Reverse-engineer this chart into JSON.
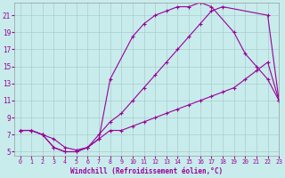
{
  "xlabel": "Windchill (Refroidissement éolien,°C)",
  "bg_color": "#c8ecec",
  "line_color": "#990099",
  "grid_color": "#aacccc",
  "xlim": [
    -0.5,
    23
  ],
  "ylim": [
    4.5,
    22.5
  ],
  "yticks": [
    5,
    7,
    9,
    11,
    13,
    15,
    17,
    19,
    21
  ],
  "xticks": [
    0,
    1,
    2,
    3,
    4,
    5,
    6,
    7,
    8,
    9,
    10,
    11,
    12,
    13,
    14,
    15,
    16,
    17,
    18,
    19,
    20,
    21,
    22,
    23
  ],
  "series1_x": [
    0,
    1,
    2,
    3,
    4,
    5,
    6,
    7,
    8,
    9,
    10,
    11,
    12,
    13,
    14,
    15,
    16,
    17,
    18,
    22,
    23
  ],
  "series1_y": [
    7.5,
    7.5,
    7.0,
    6.5,
    5.5,
    5.2,
    5.5,
    7.0,
    8.5,
    9.5,
    11.0,
    12.5,
    14.0,
    15.5,
    17.0,
    18.5,
    20.0,
    21.5,
    22.0,
    21.0,
    11.0
  ],
  "series2_x": [
    0,
    1,
    2,
    3,
    4,
    5,
    6,
    7,
    8,
    10,
    11,
    12,
    13,
    14,
    15,
    16,
    17,
    19,
    20,
    21,
    22,
    23
  ],
  "series2_y": [
    7.5,
    7.5,
    7.0,
    5.5,
    5.0,
    5.0,
    5.5,
    6.5,
    13.5,
    18.5,
    20.0,
    21.0,
    21.5,
    22.0,
    22.0,
    22.5,
    22.0,
    19.0,
    16.5,
    15.0,
    13.5,
    11.0
  ],
  "series3_x": [
    0,
    1,
    2,
    3,
    4,
    5,
    6,
    7,
    8,
    9,
    10,
    11,
    12,
    13,
    14,
    15,
    16,
    17,
    18,
    19,
    20,
    21,
    22,
    23
  ],
  "series3_y": [
    7.5,
    7.5,
    7.0,
    5.5,
    5.0,
    5.0,
    5.5,
    6.5,
    7.5,
    7.5,
    8.0,
    8.5,
    9.0,
    9.5,
    10.0,
    10.5,
    11.0,
    11.5,
    12.0,
    12.5,
    13.5,
    14.5,
    15.5,
    11.0
  ]
}
